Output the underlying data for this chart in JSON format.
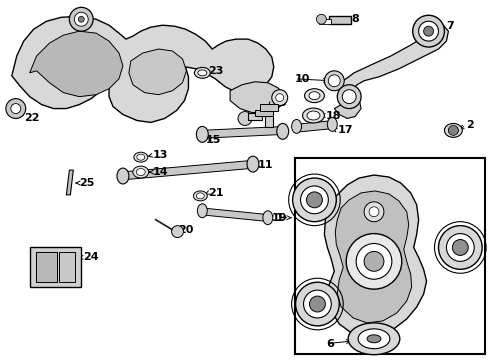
{
  "bg_color": "#ffffff",
  "fig_width": 4.89,
  "fig_height": 3.6,
  "dpi": 100,
  "font_size": 8.0
}
